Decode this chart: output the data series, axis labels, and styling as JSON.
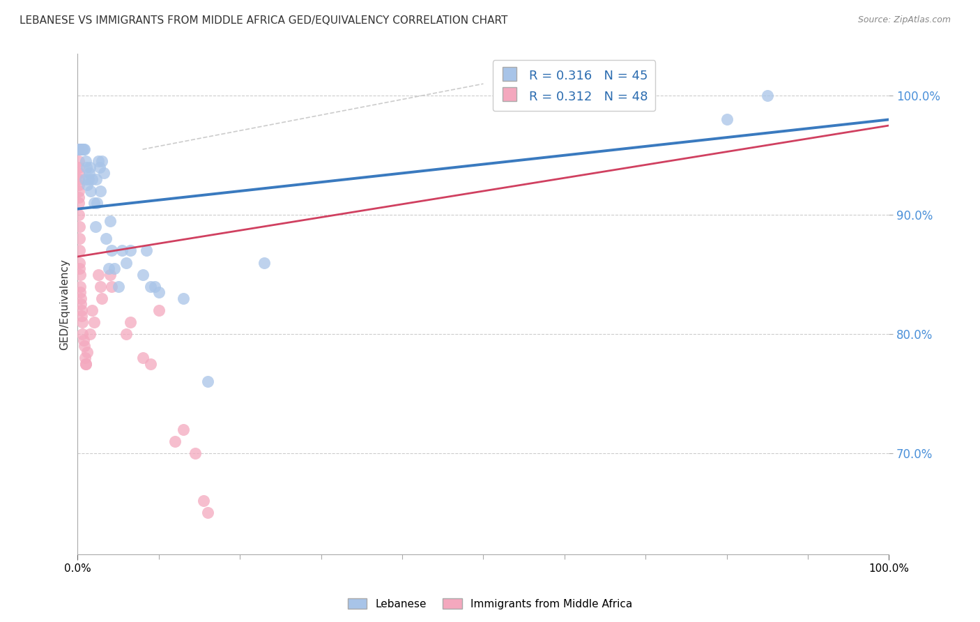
{
  "title": "LEBANESE VS IMMIGRANTS FROM MIDDLE AFRICA GED/EQUIVALENCY CORRELATION CHART",
  "source": "Source: ZipAtlas.com",
  "ylabel": "GED/Equivalency",
  "legend_blue_R": "R = 0.316",
  "legend_blue_N": "N = 45",
  "legend_pink_R": "R = 0.312",
  "legend_pink_N": "N = 48",
  "legend_label_blue": "Lebanese",
  "legend_label_pink": "Immigrants from Middle Africa",
  "blue_scatter_color": "#a8c4e8",
  "pink_scatter_color": "#f4a8be",
  "blue_line_color": "#3a7abf",
  "pink_line_color": "#d04060",
  "blue_line_x": [
    0.0,
    1.0
  ],
  "blue_line_y": [
    0.905,
    0.98
  ],
  "pink_line_x": [
    0.0,
    1.0
  ],
  "pink_line_y": [
    0.865,
    0.975
  ],
  "ref_line_x": [
    0.08,
    0.5
  ],
  "ref_line_y": [
    0.955,
    1.01
  ],
  "blue_scatter": [
    [
      0.001,
      0.955
    ],
    [
      0.002,
      0.955
    ],
    [
      0.003,
      0.955
    ],
    [
      0.004,
      0.955
    ],
    [
      0.005,
      0.955
    ],
    [
      0.006,
      0.955
    ],
    [
      0.007,
      0.955
    ],
    [
      0.008,
      0.955
    ],
    [
      0.009,
      0.93
    ],
    [
      0.01,
      0.945
    ],
    [
      0.011,
      0.94
    ],
    [
      0.012,
      0.925
    ],
    [
      0.013,
      0.93
    ],
    [
      0.014,
      0.935
    ],
    [
      0.015,
      0.94
    ],
    [
      0.016,
      0.92
    ],
    [
      0.018,
      0.93
    ],
    [
      0.02,
      0.91
    ],
    [
      0.022,
      0.89
    ],
    [
      0.023,
      0.93
    ],
    [
      0.024,
      0.91
    ],
    [
      0.025,
      0.945
    ],
    [
      0.027,
      0.94
    ],
    [
      0.028,
      0.92
    ],
    [
      0.03,
      0.945
    ],
    [
      0.032,
      0.935
    ],
    [
      0.035,
      0.88
    ],
    [
      0.038,
      0.855
    ],
    [
      0.04,
      0.895
    ],
    [
      0.042,
      0.87
    ],
    [
      0.045,
      0.855
    ],
    [
      0.05,
      0.84
    ],
    [
      0.055,
      0.87
    ],
    [
      0.06,
      0.86
    ],
    [
      0.065,
      0.87
    ],
    [
      0.08,
      0.85
    ],
    [
      0.085,
      0.87
    ],
    [
      0.09,
      0.84
    ],
    [
      0.095,
      0.84
    ],
    [
      0.1,
      0.835
    ],
    [
      0.13,
      0.83
    ],
    [
      0.16,
      0.76
    ],
    [
      0.23,
      0.86
    ],
    [
      0.8,
      0.98
    ],
    [
      0.85,
      1.0
    ]
  ],
  "pink_scatter": [
    [
      0.001,
      0.955
    ],
    [
      0.001,
      0.945
    ],
    [
      0.001,
      0.94
    ],
    [
      0.001,
      0.935
    ],
    [
      0.001,
      0.93
    ],
    [
      0.001,
      0.925
    ],
    [
      0.001,
      0.92
    ],
    [
      0.001,
      0.915
    ],
    [
      0.001,
      0.91
    ],
    [
      0.001,
      0.9
    ],
    [
      0.002,
      0.89
    ],
    [
      0.002,
      0.88
    ],
    [
      0.002,
      0.87
    ],
    [
      0.002,
      0.86
    ],
    [
      0.002,
      0.855
    ],
    [
      0.003,
      0.85
    ],
    [
      0.003,
      0.84
    ],
    [
      0.003,
      0.835
    ],
    [
      0.004,
      0.83
    ],
    [
      0.004,
      0.825
    ],
    [
      0.005,
      0.82
    ],
    [
      0.005,
      0.815
    ],
    [
      0.006,
      0.81
    ],
    [
      0.006,
      0.8
    ],
    [
      0.007,
      0.795
    ],
    [
      0.008,
      0.79
    ],
    [
      0.009,
      0.78
    ],
    [
      0.01,
      0.775
    ],
    [
      0.01,
      0.775
    ],
    [
      0.012,
      0.785
    ],
    [
      0.015,
      0.8
    ],
    [
      0.018,
      0.82
    ],
    [
      0.02,
      0.81
    ],
    [
      0.025,
      0.85
    ],
    [
      0.028,
      0.84
    ],
    [
      0.03,
      0.83
    ],
    [
      0.04,
      0.85
    ],
    [
      0.042,
      0.84
    ],
    [
      0.06,
      0.8
    ],
    [
      0.065,
      0.81
    ],
    [
      0.08,
      0.78
    ],
    [
      0.09,
      0.775
    ],
    [
      0.1,
      0.82
    ],
    [
      0.12,
      0.71
    ],
    [
      0.13,
      0.72
    ],
    [
      0.145,
      0.7
    ],
    [
      0.155,
      0.66
    ],
    [
      0.16,
      0.65
    ]
  ],
  "xlim": [
    0.0,
    1.0
  ],
  "ylim": [
    0.615,
    1.035
  ],
  "yticks": [
    0.7,
    0.8,
    0.9,
    1.0
  ],
  "ytick_labels": [
    "70.0%",
    "80.0%",
    "90.0%",
    "100.0%"
  ]
}
